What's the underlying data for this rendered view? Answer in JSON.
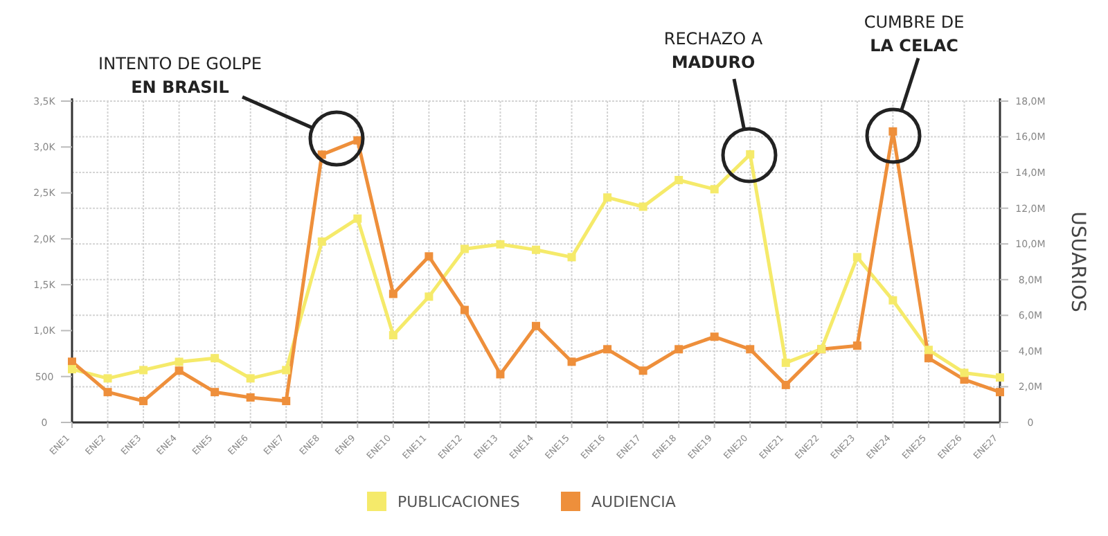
{
  "chart_data": {
    "type": "line",
    "categories": [
      "ENE1",
      "ENE2",
      "ENE3",
      "ENE4",
      "ENE5",
      "ENE6",
      "ENE7",
      "ENE8",
      "ENE9",
      "ENE10",
      "ENE11",
      "ENE12",
      "ENE13",
      "ENE14",
      "ENE15",
      "ENE16",
      "ENE17",
      "ENE18",
      "ENE19",
      "ENE20",
      "ENE21",
      "ENE22",
      "ENE23",
      "ENE24",
      "ENE25",
      "ENE26",
      "ENE27"
    ],
    "series": [
      {
        "name": "PUBLICACIONES",
        "color": "#f5ea6a",
        "values": [
          580,
          480,
          570,
          660,
          700,
          480,
          570,
          1970,
          2220,
          950,
          1370,
          1890,
          1940,
          1880,
          1800,
          2450,
          2350,
          2640,
          2540,
          2920,
          650,
          800,
          1800,
          1330,
          790,
          540,
          490
        ]
      },
      {
        "name": "AUDIENCIA",
        "color": "#ee8f3b",
        "axis": "y2",
        "values": [
          3400000,
          1700000,
          1200000,
          2900000,
          1700000,
          1400000,
          1200000,
          15000000,
          15800000,
          7200000,
          9300000,
          6300000,
          2700000,
          5400000,
          3400000,
          4100000,
          2900000,
          4100000,
          4800000,
          4100000,
          2100000,
          4100000,
          4300000,
          16300000,
          3600000,
          2400000,
          1700000
        ]
      }
    ],
    "ylim": [
      0,
      3500
    ],
    "yticks": [
      0,
      500,
      {
        "value": 1000,
        "label": "1,0K"
      },
      {
        "value": 1500,
        "label": "1,5K"
      },
      {
        "value": 2000,
        "label": "2,0K"
      },
      {
        "value": 2500,
        "label": "2,5K"
      },
      {
        "value": 3000,
        "label": "3,0K"
      },
      {
        "value": 3500,
        "label": "3,5K"
      }
    ],
    "y2lim": [
      0,
      18000000
    ],
    "y2ticks": [
      0,
      {
        "value": 2000000,
        "label": "2,0M"
      },
      {
        "value": 4000000,
        "label": "4,0M"
      },
      {
        "value": 6000000,
        "label": "6,0M"
      },
      {
        "value": 8000000,
        "label": "8,0M"
      },
      {
        "value": 10000000,
        "label": "10,0M"
      },
      {
        "value": 12000000,
        "label": "12,0M"
      },
      {
        "value": 14000000,
        "label": "14,0M"
      },
      {
        "value": 16000000,
        "label": "16,0M"
      },
      {
        "value": 18000000,
        "label": "18,0M"
      }
    ],
    "y2label": "USUARIOS",
    "grid": true,
    "legend": "bottom",
    "marker": "square",
    "line_style": "solid",
    "annotations": [
      "INTENTO DE GOLPE\nEN BRASIL",
      "RECHAZO A\nMADURO",
      "CUMBRE DE\nLA CELAC"
    ]
  }
}
